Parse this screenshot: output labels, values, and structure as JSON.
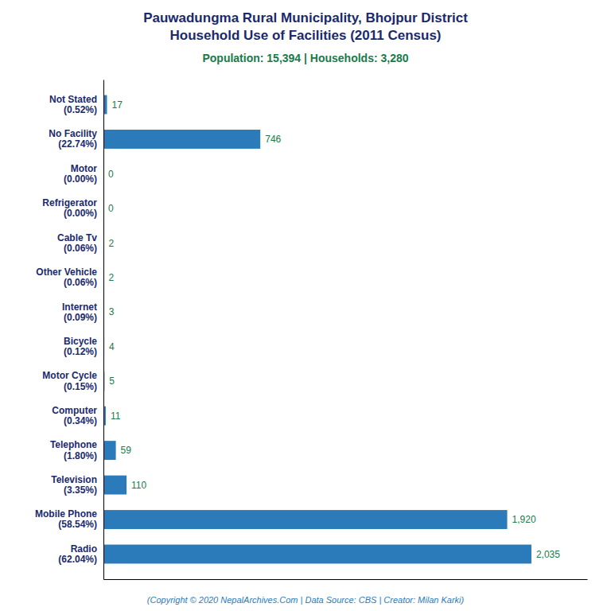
{
  "chart_data": {
    "type": "bar",
    "orientation": "horizontal",
    "title": "Pauwadungma Rural Municipality, Bhojpur District\nHousehold Use of Facilities (2011 Census)",
    "subtitle": "Population: 15,394 | Households: 3,280",
    "annotations": [
      "(Copyright © 2020 NepalArchives.Com | Data Source: CBS | Creator: Milan Karki)"
    ],
    "categories": [
      "Radio\n(62.04%)",
      "Mobile Phone\n(58.54%)",
      "Television\n(3.35%)",
      "Telephone\n(1.80%)",
      "Computer\n(0.34%)",
      "Motor Cycle\n(0.15%)",
      "Bicycle\n(0.12%)",
      "Internet\n(0.09%)",
      "Other Vehicle\n(0.06%)",
      "Cable Tv\n(0.06%)",
      "Refrigerator\n(0.00%)",
      "Motor\n(0.00%)",
      "No Facility\n(22.74%)",
      "Not Stated\n(0.52%)"
    ],
    "values": [
      2035,
      1920,
      110,
      59,
      11,
      5,
      4,
      3,
      2,
      2,
      0,
      0,
      746,
      17
    ],
    "value_labels": [
      "2,035",
      "1,920",
      "110",
      "59",
      "11",
      "5",
      "4",
      "3",
      "2",
      "2",
      "0",
      "0",
      "746",
      "17"
    ],
    "data_labels": true,
    "color": "#2b7bba",
    "xlim": [
      0,
      2300
    ],
    "tick_labels": "y",
    "grid": false
  }
}
